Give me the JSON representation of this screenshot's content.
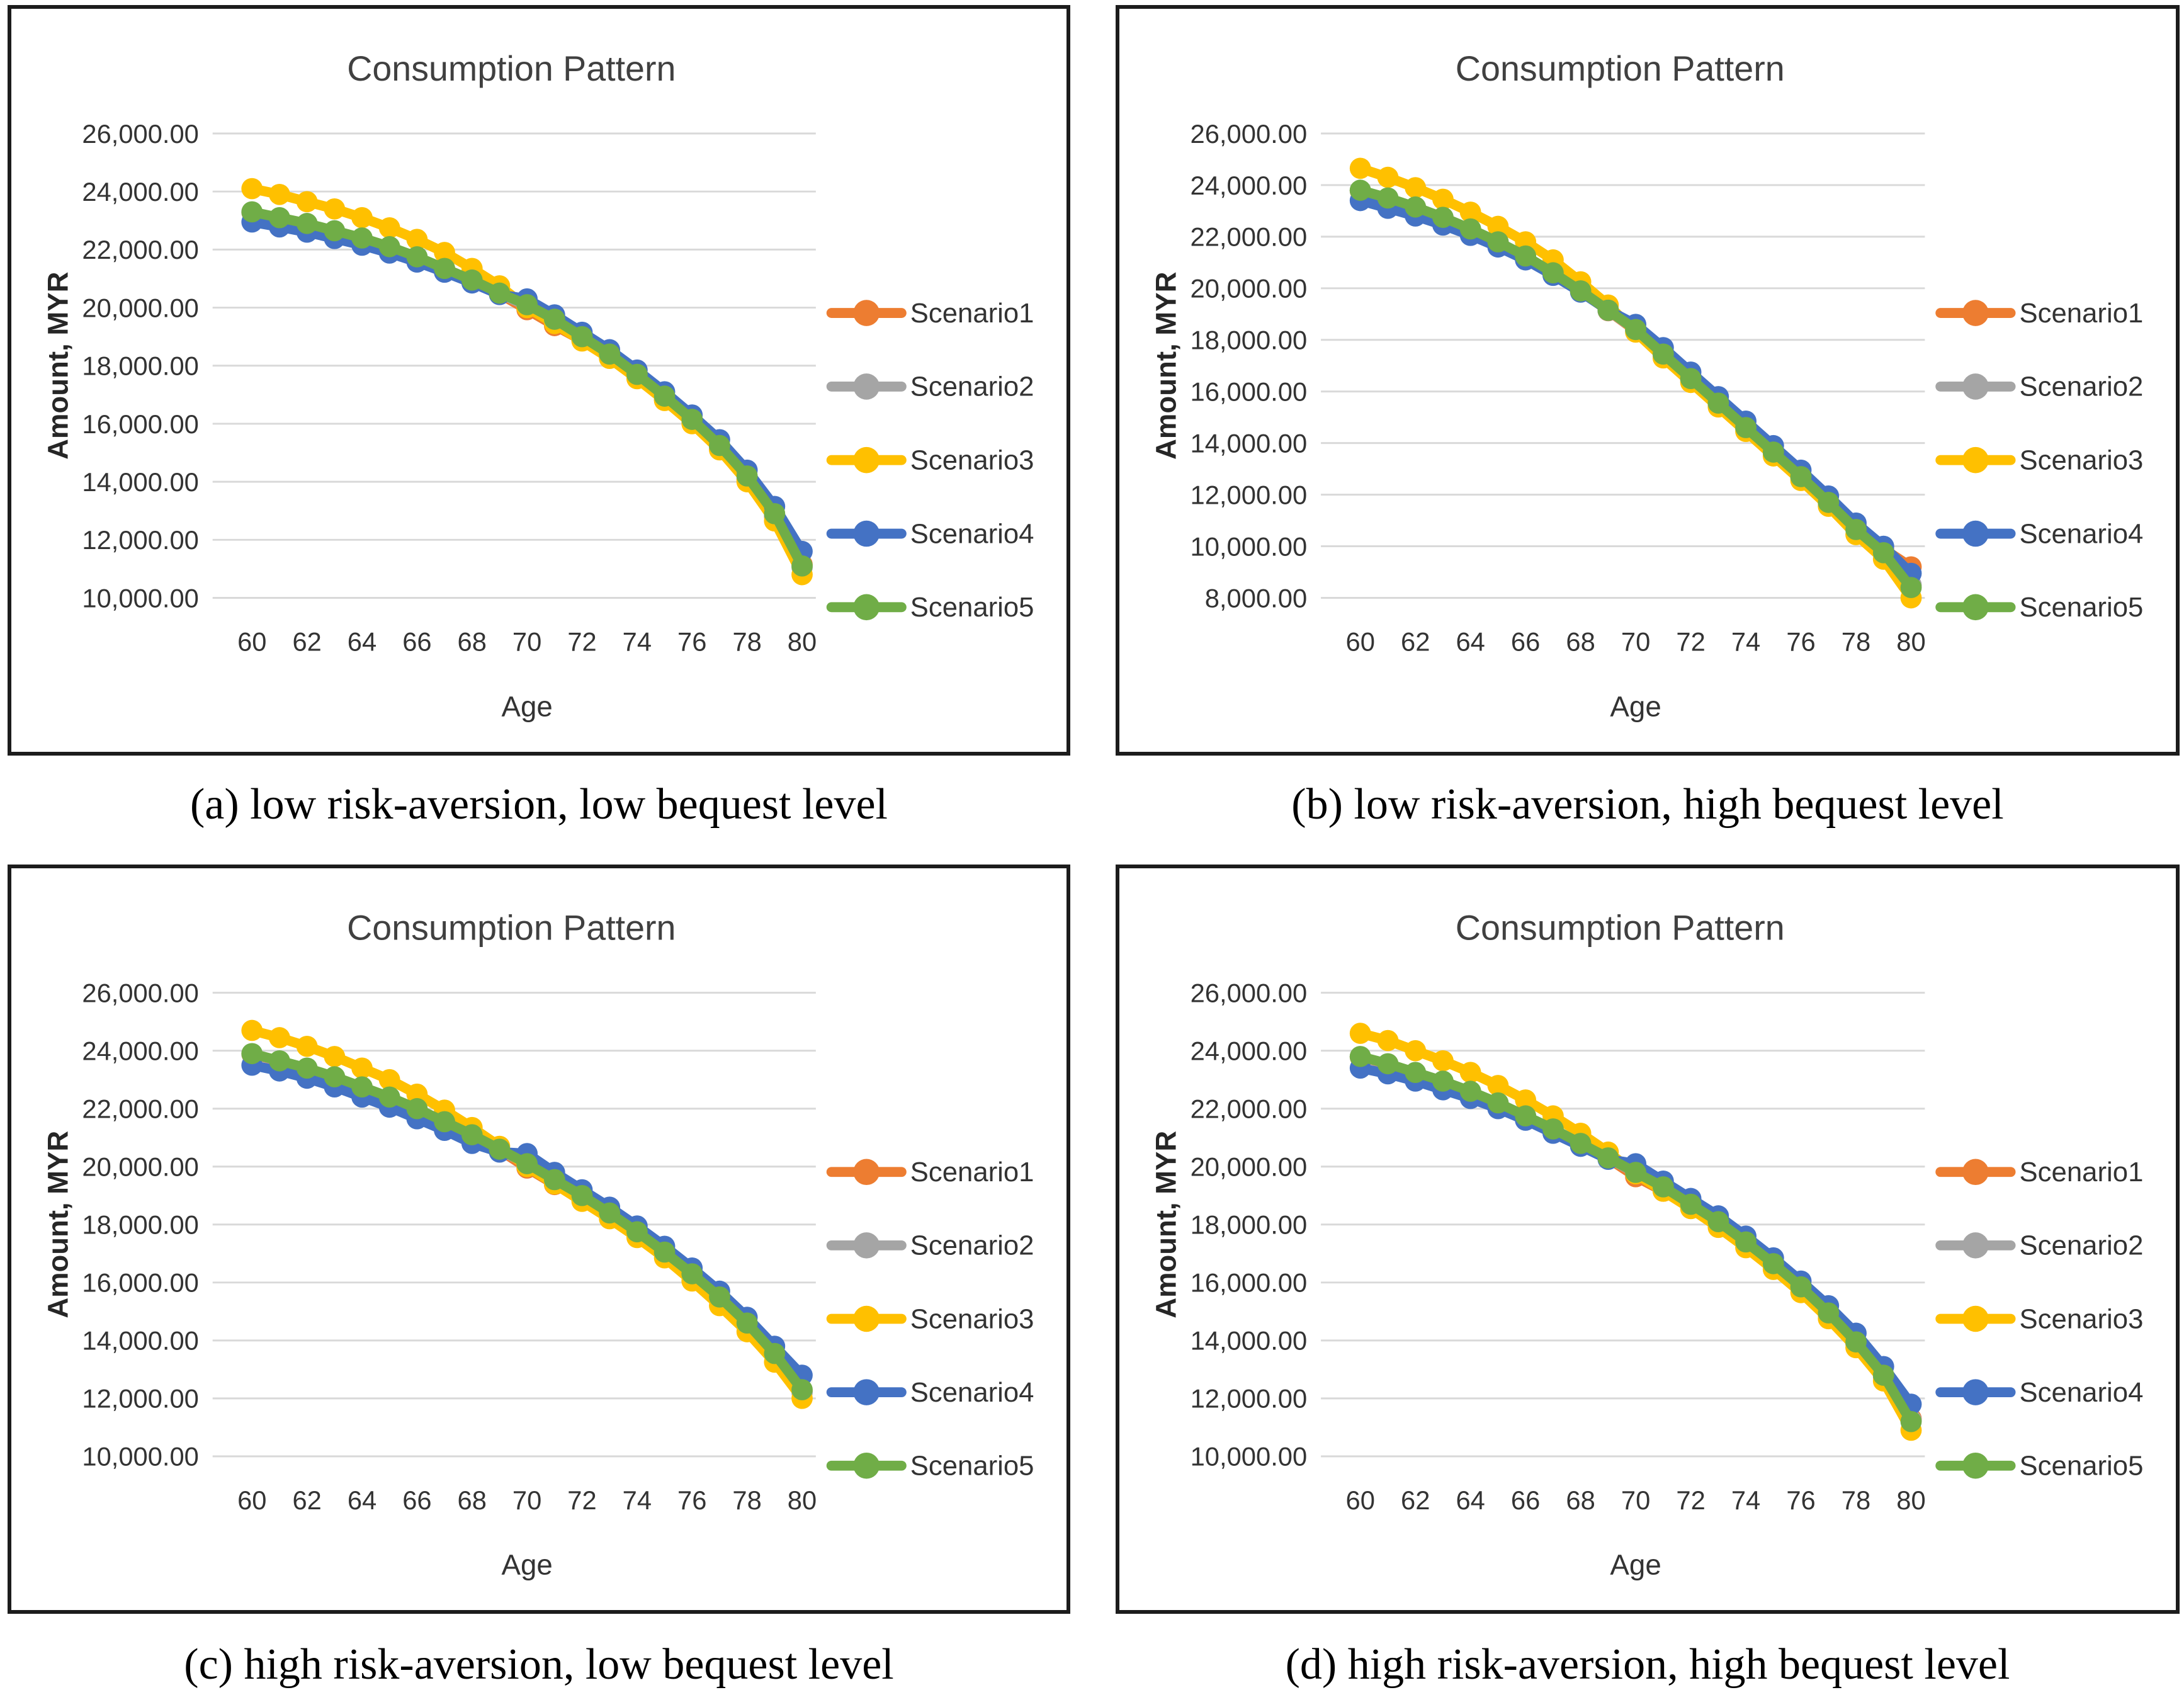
{
  "page": {
    "background": "#ffffff"
  },
  "colors": {
    "grid": "#d9d9d9",
    "title_text": "#404040",
    "tick_text": "#333333",
    "axis_label_text": "#262626",
    "legend_text": "#333333",
    "panel_border": "#1c1c1c"
  },
  "captions": {
    "a": "(a) low risk-aversion, low bequest level",
    "b": "(b) low risk-aversion, high bequest level",
    "c": "(c) high risk-aversion, low bequest level",
    "d": "(d) high risk-aversion, high bequest level"
  },
  "chart_data": [
    {
      "id": "a",
      "type": "line",
      "title": "Consumption Pattern",
      "xlabel": "Age",
      "ylabel": "Amount, MYR",
      "grid": true,
      "legend_position": "right",
      "x": [
        60,
        61,
        62,
        63,
        64,
        65,
        66,
        67,
        68,
        69,
        70,
        71,
        72,
        73,
        74,
        75,
        76,
        77,
        78,
        79,
        80
      ],
      "xticks": [
        60,
        62,
        64,
        66,
        68,
        70,
        72,
        74,
        76,
        78,
        80
      ],
      "ylim": [
        10000,
        26000
      ],
      "ytick_step": 2000,
      "series": [
        {
          "name": "Scenario1",
          "color": "#ED7D31",
          "values": [
            23280,
            23080,
            22880,
            22630,
            22380,
            22080,
            21730,
            21330,
            20930,
            20470,
            19930,
            19380,
            18870,
            18280,
            17580,
            16830,
            16030,
            15130,
            14080,
            12800,
            11150
          ]
        },
        {
          "name": "Scenario2",
          "color": "#A5A5A5",
          "values": [
            23290,
            23090,
            22890,
            22640,
            22390,
            22090,
            21740,
            21340,
            20940,
            20490,
            20050,
            19550,
            18950,
            18350,
            17650,
            16900,
            16100,
            15200,
            14150,
            12850,
            11050
          ]
        },
        {
          "name": "Scenario3",
          "color": "#FFC000",
          "values": [
            24100,
            23900,
            23650,
            23400,
            23100,
            22750,
            22350,
            21900,
            21350,
            20750,
            20000,
            19450,
            18850,
            18250,
            17550,
            16800,
            16000,
            15100,
            14000,
            12650,
            10800
          ]
        },
        {
          "name": "Scenario4",
          "color": "#4472C4",
          "values": [
            22950,
            22780,
            22600,
            22380,
            22150,
            21880,
            21570,
            21220,
            20850,
            20450,
            20300,
            19750,
            19150,
            18550,
            17850,
            17100,
            16300,
            15450,
            14400,
            13150,
            11600
          ]
        },
        {
          "name": "Scenario5",
          "color": "#70AD47",
          "values": [
            23300,
            23100,
            22900,
            22650,
            22400,
            22100,
            21750,
            21350,
            20950,
            20500,
            20100,
            19600,
            19000,
            18400,
            17700,
            16950,
            16150,
            15250,
            14200,
            12900,
            11100
          ]
        }
      ]
    },
    {
      "id": "b",
      "type": "line",
      "title": "Consumption Pattern",
      "xlabel": "Age",
      "ylabel": "Amount, MYR",
      "grid": true,
      "legend_position": "right",
      "x": [
        60,
        61,
        62,
        63,
        64,
        65,
        66,
        67,
        68,
        69,
        70,
        71,
        72,
        73,
        74,
        75,
        76,
        77,
        78,
        79,
        80
      ],
      "xticks": [
        60,
        62,
        64,
        66,
        68,
        70,
        72,
        74,
        76,
        78,
        80
      ],
      "ylim": [
        8000,
        26000
      ],
      "ytick_step": 2000,
      "series": [
        {
          "name": "Scenario1",
          "color": "#ED7D31",
          "values": [
            23780,
            23480,
            23130,
            22730,
            22280,
            21780,
            21230,
            20580,
            19880,
            19130,
            18350,
            17400,
            16450,
            15500,
            14550,
            13600,
            12650,
            11650,
            10800,
            9900,
            9200
          ]
        },
        {
          "name": "Scenario2",
          "color": "#A5A5A5",
          "values": [
            23790,
            23490,
            23140,
            22740,
            22290,
            21790,
            21240,
            20590,
            19890,
            19140,
            18380,
            17430,
            16480,
            15530,
            14580,
            13630,
            12680,
            11680,
            10650,
            9750,
            8500
          ]
        },
        {
          "name": "Scenario3",
          "color": "#FFC000",
          "values": [
            24650,
            24300,
            23900,
            23450,
            22950,
            22400,
            21800,
            21100,
            20250,
            19350,
            18300,
            17300,
            16350,
            15400,
            14450,
            13500,
            12550,
            11550,
            10450,
            9500,
            8000
          ]
        },
        {
          "name": "Scenario4",
          "color": "#4472C4",
          "values": [
            23400,
            23100,
            22800,
            22450,
            22050,
            21600,
            21100,
            20500,
            19850,
            19150,
            18600,
            17700,
            16750,
            15800,
            14850,
            13900,
            12950,
            11950,
            10900,
            10000,
            8950
          ]
        },
        {
          "name": "Scenario5",
          "color": "#70AD47",
          "values": [
            23800,
            23500,
            23150,
            22750,
            22300,
            21800,
            21250,
            20600,
            19900,
            19150,
            18400,
            17450,
            16500,
            15550,
            14600,
            13650,
            12700,
            11700,
            10650,
            9750,
            8400
          ]
        }
      ]
    },
    {
      "id": "c",
      "type": "line",
      "title": "Consumption Pattern",
      "xlabel": "Age",
      "ylabel": "Amount, MYR",
      "grid": true,
      "legend_position": "right",
      "x": [
        60,
        61,
        62,
        63,
        64,
        65,
        66,
        67,
        68,
        69,
        70,
        71,
        72,
        73,
        74,
        75,
        76,
        77,
        78,
        79,
        80
      ],
      "xticks": [
        60,
        62,
        64,
        66,
        68,
        70,
        72,
        74,
        76,
        78,
        80
      ],
      "ylim": [
        10000,
        26000
      ],
      "ytick_step": 2000,
      "series": [
        {
          "name": "Scenario1",
          "color": "#ED7D31",
          "values": [
            23880,
            23630,
            23380,
            23080,
            22730,
            22380,
            21980,
            21530,
            21080,
            20570,
            19950,
            19380,
            18930,
            18330,
            17680,
            16980,
            16230,
            15430,
            14530,
            13480,
            12250
          ]
        },
        {
          "name": "Scenario2",
          "color": "#A5A5A5",
          "values": [
            23890,
            23640,
            23390,
            23090,
            22740,
            22390,
            21990,
            21540,
            21090,
            20580,
            20080,
            19530,
            18980,
            18380,
            17730,
            17030,
            16280,
            15480,
            14580,
            13530,
            12200
          ]
        },
        {
          "name": "Scenario3",
          "color": "#FFC000",
          "values": [
            24700,
            24450,
            24150,
            23800,
            23400,
            23000,
            22500,
            21950,
            21350,
            20700,
            20000,
            19400,
            18800,
            18200,
            17550,
            16850,
            16050,
            15200,
            14300,
            13250,
            12000
          ]
        },
        {
          "name": "Scenario4",
          "color": "#4472C4",
          "values": [
            23500,
            23300,
            23050,
            22750,
            22400,
            22050,
            21650,
            21250,
            20800,
            20500,
            20450,
            19800,
            19200,
            18600,
            17950,
            17250,
            16500,
            15700,
            14800,
            13800,
            12800
          ]
        },
        {
          "name": "Scenario5",
          "color": "#70AD47",
          "values": [
            23900,
            23650,
            23400,
            23100,
            22750,
            22400,
            22000,
            21550,
            21100,
            20600,
            20100,
            19550,
            19000,
            18400,
            17750,
            17050,
            16300,
            15500,
            14600,
            13550,
            12300
          ]
        }
      ]
    },
    {
      "id": "d",
      "type": "line",
      "title": "Consumption Pattern",
      "xlabel": "Age",
      "ylabel": "Amount, MYR",
      "grid": true,
      "legend_position": "right",
      "x": [
        60,
        61,
        62,
        63,
        64,
        65,
        66,
        67,
        68,
        69,
        70,
        71,
        72,
        73,
        74,
        75,
        76,
        77,
        78,
        79,
        80
      ],
      "xticks": [
        60,
        62,
        64,
        66,
        68,
        70,
        72,
        74,
        76,
        78,
        80
      ],
      "ylim": [
        10000,
        26000
      ],
      "ytick_step": 2000,
      "series": [
        {
          "name": "Scenario1",
          "color": "#ED7D31",
          "values": [
            23780,
            23530,
            23230,
            22930,
            22580,
            22180,
            21730,
            21280,
            20780,
            20280,
            19650,
            19150,
            18630,
            18030,
            17330,
            16580,
            15780,
            14880,
            13880,
            12750,
            11300
          ]
        },
        {
          "name": "Scenario2",
          "color": "#A5A5A5",
          "values": [
            23790,
            23540,
            23240,
            22940,
            22590,
            22190,
            21740,
            21290,
            20790,
            20290,
            19780,
            19280,
            18680,
            18080,
            17380,
            16630,
            15830,
            14930,
            13930,
            12780,
            11250
          ]
        },
        {
          "name": "Scenario3",
          "color": "#FFC000",
          "values": [
            24600,
            24350,
            24000,
            23650,
            23250,
            22800,
            22300,
            21750,
            21150,
            20500,
            19750,
            19150,
            18550,
            17900,
            17200,
            16450,
            15650,
            14750,
            13750,
            12600,
            10900
          ]
        },
        {
          "name": "Scenario4",
          "color": "#4472C4",
          "values": [
            23400,
            23200,
            22950,
            22650,
            22350,
            22000,
            21600,
            21150,
            20700,
            20250,
            20100,
            19500,
            18900,
            18300,
            17600,
            16850,
            16050,
            15200,
            14250,
            13100,
            11800
          ]
        },
        {
          "name": "Scenario5",
          "color": "#70AD47",
          "values": [
            23800,
            23550,
            23250,
            22950,
            22600,
            22200,
            21750,
            21300,
            20800,
            20300,
            19800,
            19300,
            18700,
            18100,
            17400,
            16650,
            15850,
            14950,
            13950,
            12800,
            11200
          ]
        }
      ]
    }
  ]
}
